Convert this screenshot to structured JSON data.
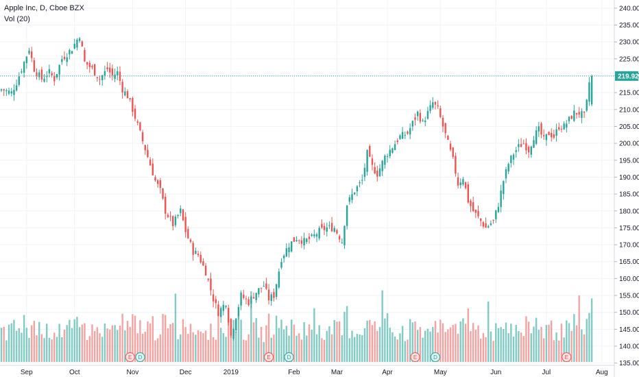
{
  "legend": {
    "title": "Apple Inc, D, Cboe BZX",
    "volume": "Vol (20)"
  },
  "colors": {
    "up": "#26a69a",
    "down": "#ef5350",
    "up_volume": "#80cbc4",
    "down_volume": "#f4a3a1",
    "grid": "#f0f3fa",
    "price_line": "#26a69a",
    "event_marker": "#ef5350",
    "event_marker_fill": "#fce4e4"
  },
  "chart_data": {
    "type": "candlestick",
    "symbol": "Apple Inc",
    "interval": "D",
    "exchange": "Cboe BZX",
    "last_price_label": "219.92",
    "last_price": 219.92,
    "ylim": [
      132.5,
      242
    ],
    "y_ticks": [
      "240.00",
      "235.00",
      "230.00",
      "225.00",
      "220.00",
      "215.00",
      "210.00",
      "205.00",
      "200.00",
      "195.00",
      "190.00",
      "185.00",
      "180.00",
      "175.00",
      "170.00",
      "165.00",
      "160.00",
      "155.00",
      "150.00",
      "145.00",
      "140.00",
      "135.00"
    ],
    "x_labels": [
      {
        "label": "Sep",
        "bar": 10
      },
      {
        "label": "Oct",
        "bar": 29
      },
      {
        "label": "Nov",
        "bar": 52
      },
      {
        "label": "Dec",
        "bar": 73
      },
      {
        "label": "2019",
        "bar": 91
      },
      {
        "label": "Feb",
        "bar": 116
      },
      {
        "label": "Mar",
        "bar": 133
      },
      {
        "label": "Apr",
        "bar": 153
      },
      {
        "label": "May",
        "bar": 174
      },
      {
        "label": "Jun",
        "bar": 196
      },
      {
        "label": "Jul",
        "bar": 216
      },
      {
        "label": "Aug",
        "bar": 238
      }
    ],
    "anchors": [
      [
        0,
        216
      ],
      [
        4,
        215
      ],
      [
        6,
        218
      ],
      [
        9,
        224
      ],
      [
        11,
        228
      ],
      [
        13,
        222
      ],
      [
        16,
        219
      ],
      [
        19,
        221
      ],
      [
        21,
        219
      ],
      [
        24,
        225
      ],
      [
        28,
        228
      ],
      [
        31,
        232
      ],
      [
        33,
        224
      ],
      [
        36,
        222
      ],
      [
        39,
        219
      ],
      [
        42,
        222
      ],
      [
        44,
        220
      ],
      [
        46,
        221
      ],
      [
        48,
        216
      ],
      [
        50,
        214
      ],
      [
        52,
        210
      ],
      [
        55,
        203
      ],
      [
        58,
        196
      ],
      [
        61,
        189
      ],
      [
        63,
        186
      ],
      [
        65,
        180
      ],
      [
        68,
        176
      ],
      [
        71,
        180
      ],
      [
        73,
        174
      ],
      [
        76,
        168
      ],
      [
        78,
        167
      ],
      [
        81,
        162
      ],
      [
        84,
        154
      ],
      [
        86,
        150
      ],
      [
        89,
        153
      ],
      [
        91,
        143
      ],
      [
        93,
        149
      ],
      [
        95,
        155
      ],
      [
        98,
        153
      ],
      [
        101,
        156
      ],
      [
        104,
        158
      ],
      [
        106,
        154
      ],
      [
        108,
        155
      ],
      [
        111,
        166
      ],
      [
        114,
        170
      ],
      [
        117,
        172
      ],
      [
        120,
        171
      ],
      [
        123,
        172
      ],
      [
        126,
        174
      ],
      [
        129,
        175
      ],
      [
        132,
        175
      ],
      [
        135,
        171
      ],
      [
        137,
        182
      ],
      [
        140,
        186
      ],
      [
        143,
        189
      ],
      [
        145,
        197
      ],
      [
        147,
        193
      ],
      [
        149,
        191
      ],
      [
        152,
        196
      ],
      [
        155,
        199
      ],
      [
        158,
        202
      ],
      [
        161,
        203
      ],
      [
        163,
        206
      ],
      [
        165,
        209
      ],
      [
        167,
        206
      ],
      [
        169,
        209
      ],
      [
        171,
        212
      ],
      [
        173,
        210
      ],
      [
        175,
        205
      ],
      [
        177,
        200
      ],
      [
        179,
        195
      ],
      [
        181,
        188
      ],
      [
        183,
        190
      ],
      [
        185,
        183
      ],
      [
        187,
        180
      ],
      [
        190,
        177
      ],
      [
        192,
        175
      ],
      [
        195,
        177
      ],
      [
        197,
        182
      ],
      [
        199,
        189
      ],
      [
        201,
        194
      ],
      [
        203,
        197
      ],
      [
        205,
        199
      ],
      [
        207,
        200
      ],
      [
        209,
        198
      ],
      [
        211,
        202
      ],
      [
        213,
        204
      ],
      [
        215,
        201
      ],
      [
        217,
        203
      ],
      [
        219,
        202
      ],
      [
        221,
        205
      ],
      [
        223,
        205
      ],
      [
        225,
        207
      ],
      [
        227,
        209
      ],
      [
        229,
        209
      ],
      [
        231,
        208
      ],
      [
        232,
        212
      ],
      [
        233,
        218
      ],
      [
        234,
        220
      ]
    ],
    "volume_scale_max": 60,
    "events": [
      {
        "type": "E",
        "bar": 51
      },
      {
        "type": "D",
        "bar": 55
      },
      {
        "type": "E",
        "bar": 106
      },
      {
        "type": "D",
        "bar": 114
      },
      {
        "type": "E",
        "bar": 164
      },
      {
        "type": "D",
        "bar": 172
      },
      {
        "type": "E",
        "bar": 224
      }
    ]
  }
}
